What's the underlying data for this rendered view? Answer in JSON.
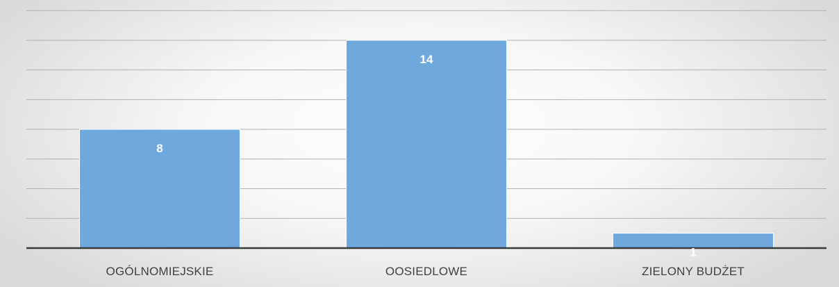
{
  "chart_data": {
    "type": "bar",
    "categories": [
      "OGÓLNOMIEJSKIE",
      "OOSIEDLOWE",
      "ZIELONY BUDŻET"
    ],
    "values": [
      8,
      14,
      1
    ],
    "ylim": [
      0,
      16
    ],
    "ytick_step": 2,
    "grid": true,
    "legend": "none",
    "show_data_labels": true,
    "bar_color": "#6fa8dc",
    "bar_edge_color": "#ffffff",
    "gridline_color": "#b0b0b0",
    "axis_color": "#3a3a3a",
    "label_color": "#ffffff",
    "category_label_color": "#404040"
  }
}
